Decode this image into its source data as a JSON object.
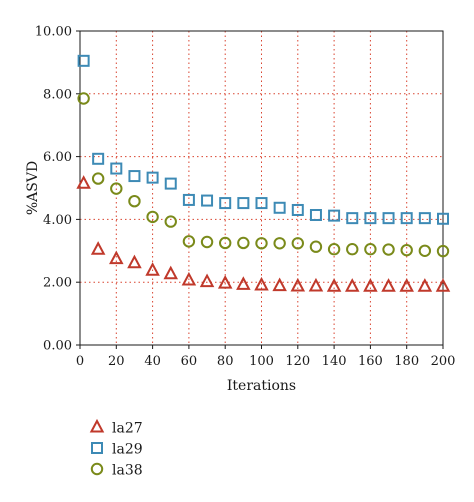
{
  "chart_data": {
    "type": "scatter",
    "title": "",
    "xlabel": "Iterations",
    "ylabel": "%ASVD",
    "xlim": [
      0,
      200
    ],
    "ylim": [
      0,
      10
    ],
    "x_ticks": [
      "0",
      "20",
      "40",
      "60",
      "80",
      "100",
      "120",
      "140",
      "160",
      "180",
      "200"
    ],
    "y_ticks": [
      "0.00",
      "2.00",
      "4.00",
      "6.00",
      "8.00",
      "10.00"
    ],
    "grid": true,
    "grid_color": "#d9432f",
    "legend_position": "bottom-left",
    "x": [
      2,
      10,
      20,
      30,
      40,
      50,
      60,
      70,
      80,
      90,
      100,
      110,
      120,
      130,
      140,
      150,
      160,
      170,
      180,
      190,
      200
    ],
    "series": [
      {
        "name": "la27",
        "marker": "triangle",
        "color": "#c0392b",
        "values": [
          5.15,
          3.05,
          2.75,
          2.62,
          2.38,
          2.27,
          2.07,
          2.02,
          1.97,
          1.93,
          1.91,
          1.89,
          1.88,
          1.88,
          1.87,
          1.87,
          1.87,
          1.87,
          1.87,
          1.87,
          1.87
        ]
      },
      {
        "name": "la29",
        "marker": "square",
        "color": "#3d8ab5",
        "values": [
          9.05,
          5.93,
          5.62,
          5.38,
          5.33,
          5.14,
          4.62,
          4.6,
          4.52,
          4.52,
          4.52,
          4.37,
          4.3,
          4.14,
          4.12,
          4.04,
          4.04,
          4.04,
          4.04,
          4.04,
          4.02
        ]
      },
      {
        "name": "la38",
        "marker": "circle",
        "color": "#7a8a1a",
        "values": [
          7.85,
          5.3,
          4.98,
          4.58,
          4.08,
          3.93,
          3.3,
          3.28,
          3.25,
          3.25,
          3.24,
          3.24,
          3.24,
          3.13,
          3.05,
          3.05,
          3.05,
          3.04,
          3.02,
          3.0,
          2.99
        ]
      }
    ]
  }
}
